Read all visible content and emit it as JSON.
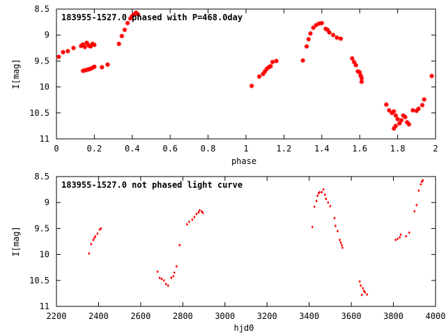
{
  "chart_data": [
    {
      "type": "scatter",
      "title": "183955-1527.0 phased with P=468.0day",
      "xlabel": "phase",
      "ylabel": "I[mag]",
      "xlim": [
        0,
        2
      ],
      "ylim": [
        8.5,
        11
      ],
      "y_inverted": true,
      "xticks": [
        0,
        0.2,
        0.4,
        0.6,
        0.8,
        1,
        1.2,
        1.4,
        1.6,
        1.8,
        2
      ],
      "xtick_labels": [
        "0",
        "0.2",
        "0.4",
        "0.6",
        "0.8",
        "1",
        "1.2",
        "1.4",
        "1.6",
        "1.8",
        "2"
      ],
      "yticks": [
        8.5,
        9,
        9.5,
        10,
        10.5,
        11
      ],
      "ytick_labels": [
        "8.5",
        "9",
        "9.5",
        "10",
        "10.5",
        "11"
      ],
      "grid": false,
      "marker_color": "#ff0000",
      "points": [
        [
          0.012,
          9.42
        ],
        [
          0.035,
          9.33
        ],
        [
          0.06,
          9.31
        ],
        [
          0.09,
          9.25
        ],
        [
          0.13,
          9.21
        ],
        [
          0.14,
          9.18
        ],
        [
          0.15,
          9.23
        ],
        [
          0.16,
          9.15
        ],
        [
          0.17,
          9.2
        ],
        [
          0.18,
          9.22
        ],
        [
          0.19,
          9.17
        ],
        [
          0.2,
          9.19
        ],
        [
          0.14,
          9.69
        ],
        [
          0.15,
          9.68
        ],
        [
          0.16,
          9.67
        ],
        [
          0.17,
          9.66
        ],
        [
          0.18,
          9.65
        ],
        [
          0.19,
          9.63
        ],
        [
          0.2,
          9.61
        ],
        [
          0.24,
          9.62
        ],
        [
          0.27,
          9.57
        ],
        [
          0.33,
          9.17
        ],
        [
          0.345,
          9.02
        ],
        [
          0.36,
          8.9
        ],
        [
          0.375,
          8.77
        ],
        [
          0.39,
          8.68
        ],
        [
          0.4,
          8.63
        ],
        [
          0.41,
          8.6
        ],
        [
          0.42,
          8.57
        ],
        [
          0.43,
          8.6
        ],
        [
          1.03,
          9.98
        ],
        [
          1.07,
          9.8
        ],
        [
          1.09,
          9.75
        ],
        [
          1.1,
          9.7
        ],
        [
          1.11,
          9.65
        ],
        [
          1.12,
          9.62
        ],
        [
          1.13,
          9.6
        ],
        [
          1.14,
          9.52
        ],
        [
          1.16,
          9.5
        ],
        [
          1.3,
          9.49
        ],
        [
          1.32,
          9.22
        ],
        [
          1.33,
          9.08
        ],
        [
          1.34,
          8.97
        ],
        [
          1.355,
          8.86
        ],
        [
          1.37,
          8.81
        ],
        [
          1.385,
          8.78
        ],
        [
          1.4,
          8.77
        ],
        [
          1.42,
          8.88
        ],
        [
          1.43,
          8.9
        ],
        [
          1.44,
          8.95
        ],
        [
          1.46,
          9.0
        ],
        [
          1.48,
          9.05
        ],
        [
          1.5,
          9.07
        ],
        [
          1.56,
          9.45
        ],
        [
          1.57,
          9.52
        ],
        [
          1.58,
          9.58
        ],
        [
          1.59,
          9.7
        ],
        [
          1.6,
          9.72
        ],
        [
          1.605,
          9.78
        ],
        [
          1.61,
          9.83
        ],
        [
          1.61,
          9.9
        ],
        [
          1.74,
          10.34
        ],
        [
          1.755,
          10.45
        ],
        [
          1.77,
          10.5
        ],
        [
          1.78,
          10.47
        ],
        [
          1.79,
          10.55
        ],
        [
          1.8,
          10.62
        ],
        [
          1.81,
          10.7
        ],
        [
          1.82,
          10.64
        ],
        [
          1.83,
          10.55
        ],
        [
          1.84,
          10.58
        ],
        [
          1.85,
          10.68
        ],
        [
          1.86,
          10.72
        ],
        [
          1.78,
          10.8
        ],
        [
          1.79,
          10.75
        ],
        [
          1.88,
          10.45
        ],
        [
          1.9,
          10.46
        ],
        [
          1.91,
          10.42
        ],
        [
          1.93,
          10.35
        ],
        [
          1.94,
          10.24
        ],
        [
          1.98,
          9.79
        ]
      ]
    },
    {
      "type": "scatter",
      "title": "183955-1527.0 not phased light curve",
      "xlabel": "hjd0",
      "ylabel": "I[mag]",
      "xlim": [
        2200,
        4000
      ],
      "ylim": [
        8.5,
        11
      ],
      "y_inverted": true,
      "xticks": [
        2200,
        2400,
        2600,
        2800,
        3000,
        3200,
        3400,
        3600,
        3800,
        4000
      ],
      "xtick_labels": [
        "2200",
        "2400",
        "2600",
        "2800",
        "3000",
        "3200",
        "3400",
        "3600",
        "3800",
        "4000"
      ],
      "yticks": [
        8.5,
        9,
        9.5,
        10,
        10.5,
        11
      ],
      "ytick_labels": [
        "8.5",
        "9",
        "9.5",
        "10",
        "10.5",
        "11"
      ],
      "grid": false,
      "marker_color": "#ff0000",
      "points": [
        [
          2355,
          9.98
        ],
        [
          2365,
          9.8
        ],
        [
          2375,
          9.72
        ],
        [
          2380,
          9.68
        ],
        [
          2385,
          9.65
        ],
        [
          2395,
          9.6
        ],
        [
          2405,
          9.52
        ],
        [
          2412,
          9.5
        ],
        [
          2680,
          10.33
        ],
        [
          2690,
          10.45
        ],
        [
          2700,
          10.47
        ],
        [
          2710,
          10.5
        ],
        [
          2720,
          10.57
        ],
        [
          2730,
          10.6
        ],
        [
          2745,
          10.45
        ],
        [
          2755,
          10.42
        ],
        [
          2760,
          10.35
        ],
        [
          2770,
          10.23
        ],
        [
          2785,
          9.82
        ],
        [
          2820,
          9.42
        ],
        [
          2830,
          9.37
        ],
        [
          2845,
          9.33
        ],
        [
          2855,
          9.28
        ],
        [
          2865,
          9.22
        ],
        [
          2875,
          9.19
        ],
        [
          2880,
          9.15
        ],
        [
          2890,
          9.17
        ],
        [
          2895,
          9.2
        ],
        [
          3415,
          9.47
        ],
        [
          3425,
          9.08
        ],
        [
          3435,
          8.97
        ],
        [
          3440,
          8.87
        ],
        [
          3445,
          8.82
        ],
        [
          3450,
          8.8
        ],
        [
          3460,
          8.8
        ],
        [
          3468,
          8.75
        ],
        [
          3475,
          8.85
        ],
        [
          3480,
          8.93
        ],
        [
          3490,
          9.0
        ],
        [
          3500,
          9.07
        ],
        [
          3520,
          9.3
        ],
        [
          3525,
          9.45
        ],
        [
          3535,
          9.55
        ],
        [
          3545,
          9.72
        ],
        [
          3550,
          9.77
        ],
        [
          3555,
          9.82
        ],
        [
          3558,
          9.87
        ],
        [
          3640,
          10.52
        ],
        [
          3645,
          10.6
        ],
        [
          3655,
          10.65
        ],
        [
          3660,
          10.7
        ],
        [
          3665,
          10.73
        ],
        [
          3675,
          10.77
        ],
        [
          3650,
          10.78
        ],
        [
          3810,
          9.72
        ],
        [
          3820,
          9.7
        ],
        [
          3830,
          9.67
        ],
        [
          3835,
          9.62
        ],
        [
          3860,
          9.65
        ],
        [
          3875,
          9.58
        ],
        [
          3900,
          9.17
        ],
        [
          3910,
          9.05
        ],
        [
          3920,
          8.77
        ],
        [
          3930,
          8.65
        ],
        [
          3935,
          8.6
        ],
        [
          3940,
          8.57
        ]
      ]
    }
  ]
}
